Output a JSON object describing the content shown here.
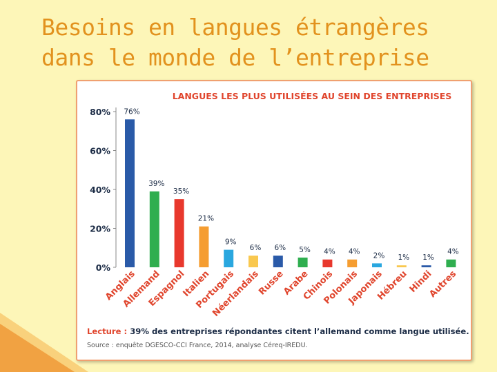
{
  "slide": {
    "title_line1": "Besoins en langues étrangères",
    "title_line2": "dans le monde de l’entreprise"
  },
  "colors": {
    "background": "#fdf6b8",
    "title": "#e2921e",
    "panel_border": "#f0a070",
    "chart_title": "#e0452d",
    "axis_text": "#1b2b45",
    "decoration": "#f2a23a"
  },
  "chart_data": {
    "type": "bar",
    "title": "LANGUES LES PLUS UTILISÉES AU SEIN DES ENTREPRISES",
    "xlabel": "",
    "ylabel": "",
    "ylim": [
      0,
      80
    ],
    "yticks": [
      0,
      20,
      40,
      60,
      80
    ],
    "ytick_labels": [
      "0%",
      "20%",
      "40%",
      "60%",
      "80%"
    ],
    "grid": false,
    "categories": [
      "Anglais",
      "Allemand",
      "Espagnol",
      "Italien",
      "Portugais",
      "Néerlandais",
      "Russe",
      "Arabe",
      "Chinois",
      "Polonais",
      "Japonais",
      "Hébreu",
      "Hindi",
      "Autres"
    ],
    "values": [
      76,
      39,
      35,
      21,
      9,
      6,
      6,
      5,
      4,
      4,
      2,
      1,
      1,
      4
    ],
    "value_labels": [
      "76%",
      "39%",
      "35%",
      "21%",
      "9%",
      "6%",
      "6%",
      "5%",
      "4%",
      "4%",
      "2%",
      "1%",
      "1%",
      "4%"
    ],
    "bar_colors": [
      "#2a5aa8",
      "#2fae4f",
      "#e8382d",
      "#f59d31",
      "#2aa7df",
      "#f9c84f",
      "#2a5aa8",
      "#2fae4f",
      "#e8382d",
      "#f59d31",
      "#2aa7df",
      "#f9c84f",
      "#2a5aa8",
      "#2fae4f"
    ]
  },
  "footer": {
    "lecture_label": "Lecture :",
    "lecture_text": " 39% des entreprises répondantes citent l’allemand comme langue utilisée.",
    "source": "Source : enquête DGESCO-CCI France, 2014, analyse Céreq-IREDU."
  }
}
